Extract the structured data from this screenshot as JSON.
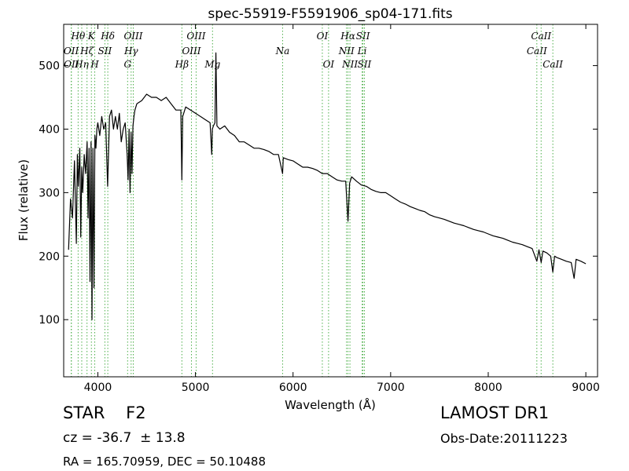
{
  "chart_data": {
    "type": "line",
    "title": "spec-55919-F5591906_sp04-171.fits",
    "xlabel": "Wavelength (Å)",
    "ylabel": "Flux (relative)",
    "xlim": [
      3650,
      9120
    ],
    "ylim": [
      10,
      565
    ],
    "xticks": [
      4000,
      5000,
      6000,
      7000,
      8000,
      9000
    ],
    "yticks": [
      100,
      200,
      300,
      400,
      500
    ],
    "grid": false,
    "line_color": "#000000",
    "marker_color": "#4daf4a",
    "series": [
      {
        "x": [
          3700,
          3720,
          3740,
          3760,
          3780,
          3790,
          3800,
          3815,
          3825,
          3835,
          3845,
          3860,
          3875,
          3890,
          3900,
          3910,
          3920,
          3930,
          3940,
          3950,
          3960,
          3970,
          3980,
          3990,
          4000,
          4020,
          4040,
          4060,
          4080,
          4100,
          4120,
          4140,
          4160,
          4180,
          4200,
          4220,
          4240,
          4260,
          4280,
          4300,
          4310,
          4320,
          4330,
          4340,
          4350,
          4360,
          4370,
          4380,
          4400,
          4450,
          4500,
          4550,
          4600,
          4650,
          4700,
          4750,
          4800,
          4850,
          4861,
          4870,
          4900,
          4950,
          5000,
          5050,
          5100,
          5150,
          5167,
          5173,
          5184,
          5200,
          5210,
          5220,
          5250,
          5300,
          5350,
          5400,
          5450,
          5500,
          5550,
          5600,
          5650,
          5700,
          5750,
          5800,
          5850,
          5893,
          5900,
          5950,
          6000,
          6050,
          6100,
          6150,
          6200,
          6250,
          6300,
          6350,
          6400,
          6450,
          6500,
          6540,
          6563,
          6580,
          6600,
          6650,
          6700,
          6750,
          6800,
          6850,
          6900,
          6950,
          7000,
          7050,
          7100,
          7150,
          7200,
          7250,
          7300,
          7350,
          7400,
          7450,
          7500,
          7550,
          7600,
          7650,
          7700,
          7750,
          7800,
          7850,
          7900,
          7950,
          8000,
          8050,
          8100,
          8150,
          8200,
          8250,
          8300,
          8350,
          8400,
          8450,
          8498,
          8520,
          8542,
          8560,
          8600,
          8640,
          8662,
          8680,
          8700,
          8750,
          8800,
          8850,
          8880,
          8900,
          8950,
          9000
        ],
        "y": [
          210,
          290,
          260,
          350,
          220,
          360,
          310,
          370,
          230,
          340,
          300,
          360,
          330,
          380,
          260,
          370,
          160,
          380,
          100,
          370,
          150,
          390,
          370,
          400,
          410,
          390,
          420,
          400,
          410,
          310,
          420,
          430,
          400,
          420,
          400,
          425,
          380,
          400,
          410,
          360,
          320,
          400,
          300,
          395,
          330,
          405,
          420,
          430,
          440,
          445,
          455,
          450,
          450,
          445,
          450,
          440,
          430,
          430,
          320,
          420,
          435,
          430,
          425,
          420,
          415,
          410,
          360,
          400,
          405,
          410,
          520,
          405,
          400,
          405,
          395,
          390,
          380,
          380,
          375,
          370,
          370,
          368,
          365,
          360,
          360,
          330,
          355,
          352,
          350,
          345,
          340,
          340,
          338,
          335,
          330,
          330,
          325,
          320,
          318,
          318,
          255,
          315,
          325,
          318,
          312,
          310,
          305,
          302,
          300,
          300,
          295,
          290,
          285,
          282,
          278,
          275,
          272,
          270,
          265,
          262,
          260,
          258,
          255,
          252,
          250,
          248,
          245,
          242,
          240,
          238,
          235,
          232,
          230,
          228,
          225,
          222,
          220,
          218,
          215,
          212,
          192,
          210,
          190,
          208,
          205,
          200,
          175,
          200,
          198,
          195,
          192,
          190,
          165,
          195,
          192,
          188
        ]
      }
    ],
    "line_markers": [
      {
        "label": "Hθ",
        "wavelength": 3798,
        "row": 1
      },
      {
        "label": "OII",
        "wavelength": 3727,
        "row": 2
      },
      {
        "label": "OII",
        "wavelength": 3729,
        "row": 3
      },
      {
        "label": "Hη",
        "wavelength": 3835,
        "row": 3
      },
      {
        "label": "Hζ",
        "wavelength": 3889,
        "row": 2
      },
      {
        "label": "H",
        "wavelength": 3968,
        "row": 3
      },
      {
        "label": "K",
        "wavelength": 3934,
        "row": 1
      },
      {
        "label": "SII",
        "wavelength": 4072,
        "row": 2
      },
      {
        "label": "Hδ",
        "wavelength": 4102,
        "row": 1
      },
      {
        "label": "G",
        "wavelength": 4305,
        "row": 3
      },
      {
        "label": "Hγ",
        "wavelength": 4341,
        "row": 2
      },
      {
        "label": "OIII",
        "wavelength": 4363,
        "row": 1
      },
      {
        "label": "Hβ",
        "wavelength": 4861,
        "row": 3
      },
      {
        "label": "OIII",
        "wavelength": 4959,
        "row": 2
      },
      {
        "label": "OIII",
        "wavelength": 5007,
        "row": 1
      },
      {
        "label": "Mg",
        "wavelength": 5175,
        "row": 3
      },
      {
        "label": "Na",
        "wavelength": 5893,
        "row": 2
      },
      {
        "label": "OI",
        "wavelength": 6300,
        "row": 1
      },
      {
        "label": "OI",
        "wavelength": 6364,
        "row": 3
      },
      {
        "label": "NII",
        "wavelength": 6548,
        "row": 2
      },
      {
        "label": "Hα",
        "wavelength": 6563,
        "row": 1
      },
      {
        "label": "NII",
        "wavelength": 6583,
        "row": 3
      },
      {
        "label": "Li",
        "wavelength": 6708,
        "row": 2
      },
      {
        "label": "SII",
        "wavelength": 6716,
        "row": 1
      },
      {
        "label": "SII",
        "wavelength": 6731,
        "row": 3
      },
      {
        "label": "CaII",
        "wavelength": 8498,
        "row": 2
      },
      {
        "label": "CaII",
        "wavelength": 8542,
        "row": 1
      },
      {
        "label": "CaII",
        "wavelength": 8662,
        "row": 3
      }
    ]
  },
  "info": {
    "object_class": "STAR    F2",
    "survey": "LAMOST DR1",
    "redshift": "cz = -36.7  ± 13.8",
    "obs_date": "Obs-Date:20111223",
    "coords": "RA = 165.70959, DEC = 50.10488"
  }
}
